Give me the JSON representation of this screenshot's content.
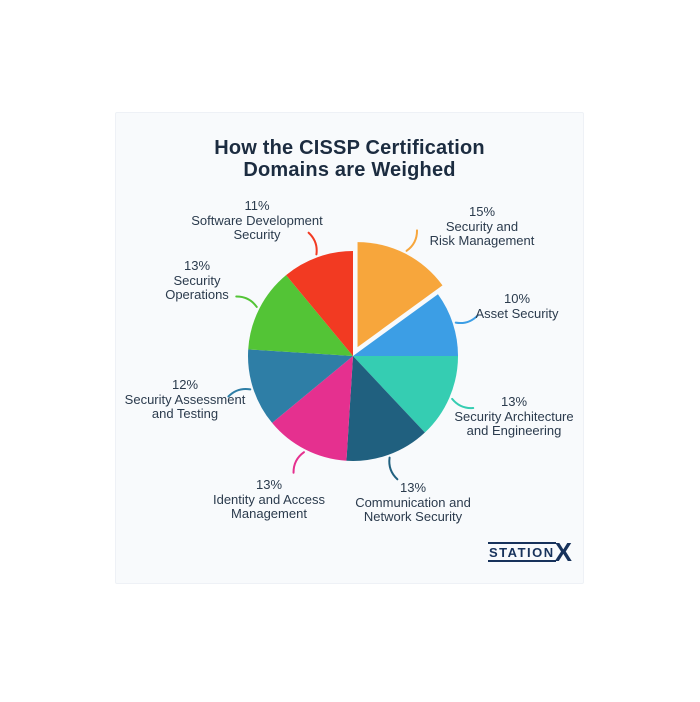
{
  "chart_data": {
    "type": "pie",
    "title": "How the CISSP Certification\nDomains are Weighed",
    "start_angle_deg": 0,
    "direction": "clockwise",
    "exploded_slice": "Security and Risk Management",
    "legend_position": "around-labels",
    "slices": [
      {
        "name": "Security and Risk Management",
        "value": 15,
        "color": "#F7A63C",
        "label": "15%\nSecurity and\nRisk Management"
      },
      {
        "name": "Asset Security",
        "value": 10,
        "color": "#3C9EE5",
        "label": "10%\nAsset Security"
      },
      {
        "name": "Security Architecture and Engineering",
        "value": 13,
        "color": "#35CDB2",
        "label": "13%\nSecurity Architecture\nand Engineering"
      },
      {
        "name": "Communication and Network Security",
        "value": 13,
        "color": "#20607F",
        "label": "13%\nCommunication and\nNetwork Security"
      },
      {
        "name": "Identity and Access Management",
        "value": 13,
        "color": "#E5308F",
        "label": "13%\nIdentity and Access\nManagement"
      },
      {
        "name": "Security Assessment and Testing",
        "value": 12,
        "color": "#2E7EA6",
        "label": "12%\nSecurity Assessment\nand Testing"
      },
      {
        "name": "Security Operations",
        "value": 13,
        "color": "#53C436",
        "label": "13%\nSecurity\nOperations"
      },
      {
        "name": "Software Development Security",
        "value": 11,
        "color": "#F23A22",
        "label": "11%\nSoftware Development\nSecurity"
      }
    ]
  },
  "branding": {
    "logo_text": "STATION",
    "logo_x": "X",
    "logo_color": "#17325B"
  },
  "colors": {
    "panel_background": "#F8FAFC",
    "page_background": "#FFFFFF",
    "title_text": "#1C2C40",
    "label_text": "#2B3B4D"
  }
}
